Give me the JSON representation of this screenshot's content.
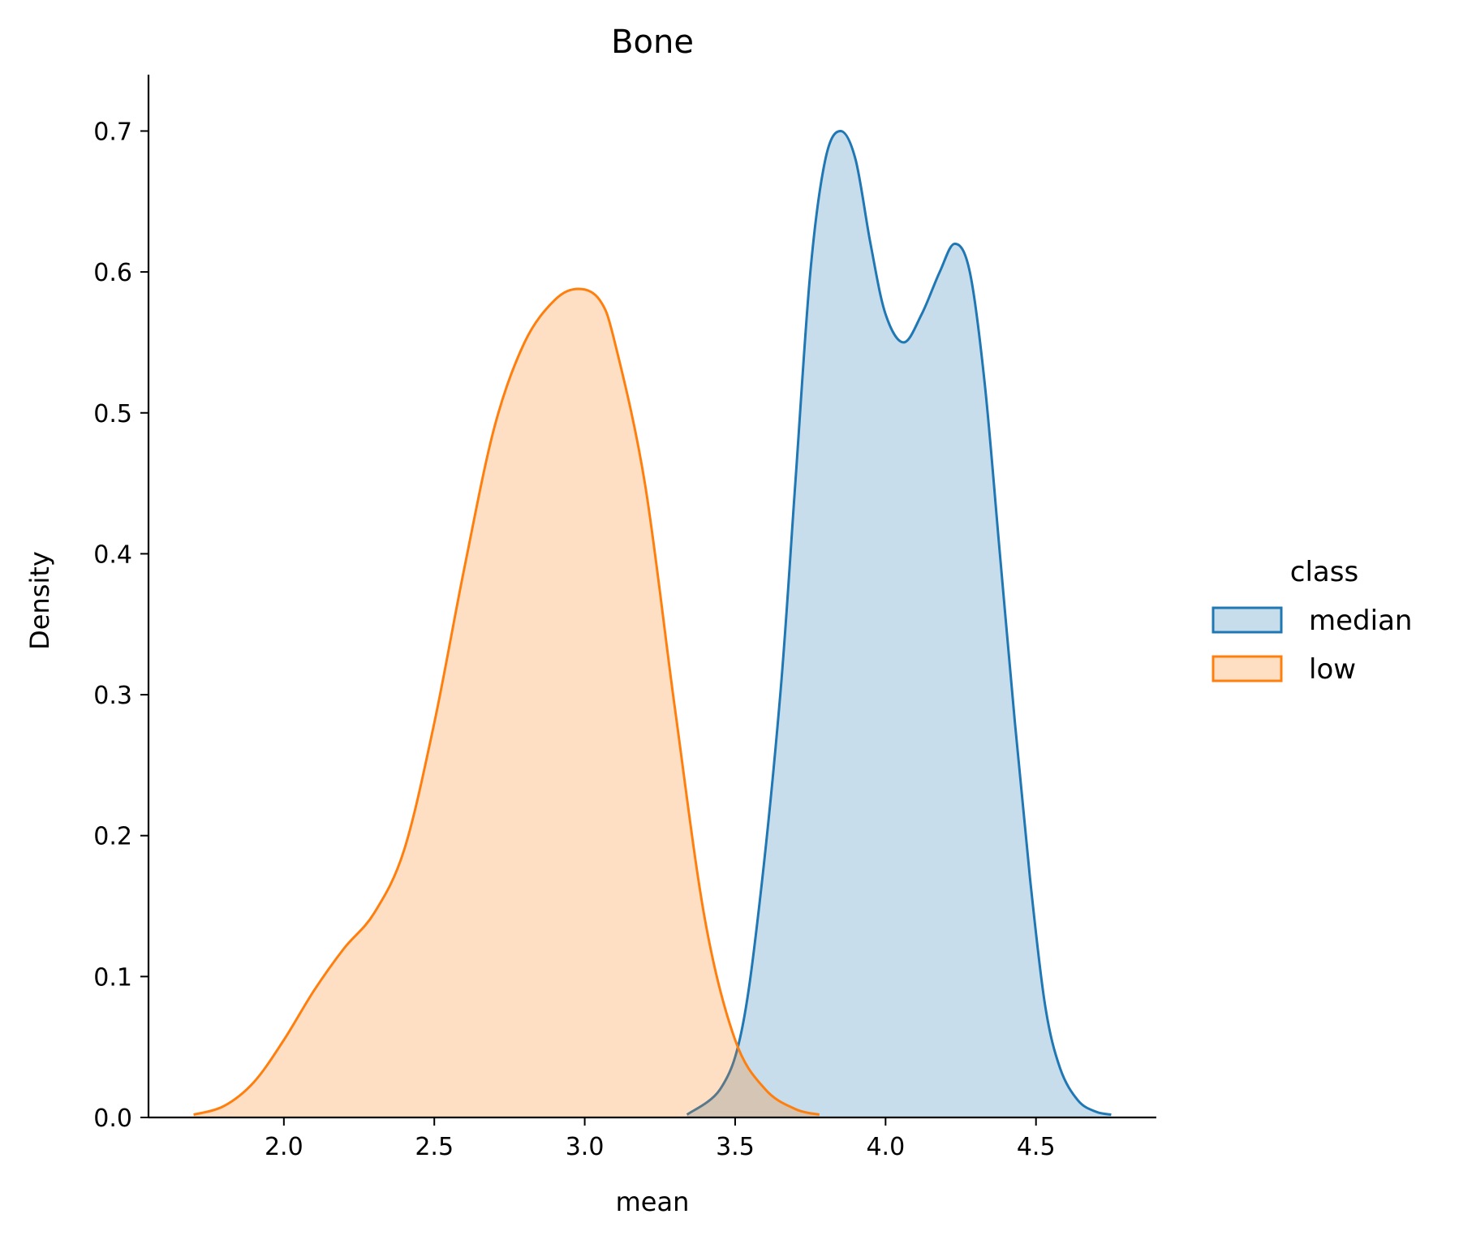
{
  "chart_data": {
    "type": "area",
    "title": "Bone",
    "xlabel": "mean",
    "ylabel": "Density",
    "xlim": [
      1.55,
      4.9
    ],
    "ylim": [
      0.0,
      0.74
    ],
    "xticks": [
      2.0,
      2.5,
      3.0,
      3.5,
      4.0,
      4.5
    ],
    "xtick_labels": [
      "2.0",
      "2.5",
      "3.0",
      "3.5",
      "4.0",
      "4.5"
    ],
    "yticks": [
      0.0,
      0.1,
      0.2,
      0.3,
      0.4,
      0.5,
      0.6,
      0.7
    ],
    "ytick_labels": [
      "0.0",
      "0.1",
      "0.2",
      "0.3",
      "0.4",
      "0.5",
      "0.6",
      "0.7"
    ],
    "grid": false,
    "legend": {
      "title": "class",
      "position": "right"
    },
    "series": [
      {
        "name": "median",
        "color": "#1f77b4",
        "fill": "#c6dcec",
        "x": [
          3.34,
          3.45,
          3.52,
          3.58,
          3.65,
          3.7,
          3.75,
          3.8,
          3.85,
          3.9,
          3.95,
          4.0,
          4.06,
          4.12,
          4.18,
          4.23,
          4.28,
          4.33,
          4.38,
          4.43,
          4.48,
          4.53,
          4.58,
          4.64,
          4.7,
          4.75
        ],
        "y": [
          0.002,
          0.02,
          0.06,
          0.15,
          0.3,
          0.45,
          0.6,
          0.68,
          0.7,
          0.68,
          0.62,
          0.57,
          0.55,
          0.57,
          0.6,
          0.62,
          0.6,
          0.52,
          0.4,
          0.28,
          0.17,
          0.08,
          0.035,
          0.012,
          0.004,
          0.002
        ]
      },
      {
        "name": "low",
        "color": "#ff7f0e",
        "fill": "#fddbbc",
        "x": [
          1.7,
          1.8,
          1.9,
          2.0,
          2.1,
          2.2,
          2.3,
          2.4,
          2.5,
          2.6,
          2.7,
          2.8,
          2.9,
          2.98,
          3.05,
          3.1,
          3.2,
          3.3,
          3.4,
          3.5,
          3.6,
          3.7,
          3.78
        ],
        "y": [
          0.002,
          0.008,
          0.025,
          0.055,
          0.09,
          0.12,
          0.145,
          0.19,
          0.28,
          0.39,
          0.49,
          0.55,
          0.58,
          0.588,
          0.58,
          0.55,
          0.45,
          0.29,
          0.14,
          0.055,
          0.02,
          0.006,
          0.002
        ]
      }
    ]
  }
}
